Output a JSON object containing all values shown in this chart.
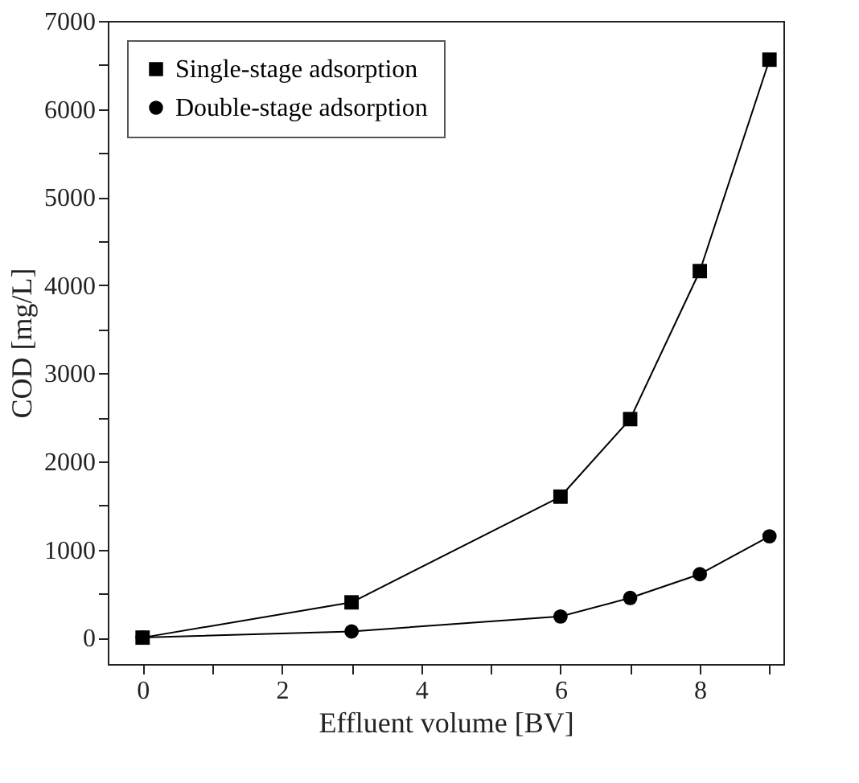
{
  "chart_data": {
    "type": "line",
    "xlabel": "Effluent volume [BV]",
    "ylabel": "COD [mg/L]",
    "x": [
      0,
      3,
      6,
      7,
      8,
      9
    ],
    "series": [
      {
        "name": "Single-stage adsorption",
        "color": "#000000",
        "marker": "square",
        "values": [
          0,
          400,
          1600,
          2480,
          4160,
          6560
        ]
      },
      {
        "name": "Double-stage adsorption",
        "color": "#000000",
        "marker": "circle",
        "values": [
          0,
          70,
          240,
          450,
          720,
          1150
        ]
      }
    ],
    "xlim": [
      -0.5,
      9.2
    ],
    "ylim": [
      -300,
      7000
    ],
    "xticks": [
      0,
      {
        "value": 1,
        "label": null
      },
      2,
      {
        "value": 3,
        "label": null
      },
      4,
      {
        "value": 5,
        "label": null
      },
      6,
      {
        "value": 7,
        "label": null
      },
      8,
      {
        "value": 9,
        "label": null
      }
    ],
    "yticks": [
      0,
      {
        "value": 500,
        "label": null
      },
      1000,
      {
        "value": 1500,
        "label": null
      },
      2000,
      {
        "value": 2500,
        "label": null
      },
      3000,
      {
        "value": 3500,
        "label": null
      },
      4000,
      {
        "value": 4500,
        "label": null
      },
      5000,
      {
        "value": 5500,
        "label": null
      },
      6000,
      {
        "value": 6500,
        "label": null
      },
      7000
    ],
    "legend": "top left",
    "grid": false,
    "line_style": "solid"
  }
}
